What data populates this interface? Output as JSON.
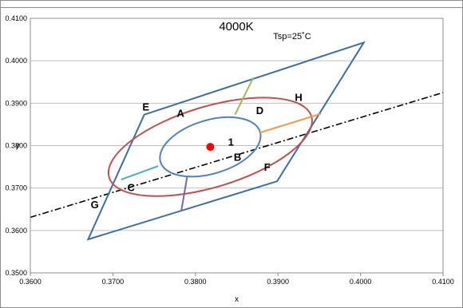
{
  "chart_data": {
    "type": "scatter",
    "title": "4000K",
    "subtitle": "Tsp=25˚C",
    "xlabel": "x",
    "ylabel": "y",
    "xlim": [
      0.36,
      0.41
    ],
    "ylim": [
      0.35,
      0.41
    ],
    "x_ticks": [
      "0.3600",
      "0.3700",
      "0.3800",
      "0.3900",
      "0.4000",
      "0.4100"
    ],
    "y_ticks": [
      "0.3500",
      "0.3600",
      "0.3700",
      "0.3800",
      "0.3900",
      "0.4000",
      "0.4100"
    ],
    "grid": "horizontal",
    "legend": "none",
    "quadrilateral": {
      "color": "#3a6ea5",
      "points": [
        [
          0.3738,
          0.3873
        ],
        [
          0.4004,
          0.4043
        ],
        [
          0.3899,
          0.3716
        ],
        [
          0.367,
          0.3579
        ]
      ]
    },
    "black_body_line": {
      "color": "#000000",
      "style": "dash-dot",
      "points": [
        [
          0.36,
          0.3631
        ],
        [
          0.41,
          0.3925
        ]
      ]
    },
    "ellipses": [
      {
        "name": "outer",
        "color": "#c0504d",
        "center": [
          0.3818,
          0.3797
        ],
        "rx": 0.0128,
        "ry": 0.0095
      },
      {
        "name": "inner",
        "color": "#4f81bd",
        "center": [
          0.3818,
          0.3797
        ],
        "rx": 0.0063,
        "ry": 0.0063
      }
    ],
    "segments": [
      {
        "color": "#9bbb59",
        "points": [
          [
            0.3848,
            0.3873
          ],
          [
            0.387,
            0.396
          ]
        ]
      },
      {
        "color": "#f79646",
        "points": [
          [
            0.3877,
            0.383
          ],
          [
            0.3952,
            0.3875
          ]
        ]
      },
      {
        "color": "#4bacc6",
        "points": [
          [
            0.3755,
            0.3752
          ],
          [
            0.371,
            0.372
          ]
        ]
      },
      {
        "color": "#8064a2",
        "points": [
          [
            0.379,
            0.3727
          ],
          [
            0.3783,
            0.3647
          ]
        ]
      }
    ],
    "point": {
      "label": "1",
      "color": "#ff0000",
      "x": 0.3818,
      "y": 0.3797
    },
    "region_labels": [
      {
        "text": "E",
        "x": 0.374,
        "y": 0.3883
      },
      {
        "text": "A",
        "x": 0.3782,
        "y": 0.3868
      },
      {
        "text": "H",
        "x": 0.3925,
        "y": 0.3905
      },
      {
        "text": "D",
        "x": 0.3878,
        "y": 0.3874
      },
      {
        "text": "1",
        "x": 0.3843,
        "y": 0.38
      },
      {
        "text": "B",
        "x": 0.3851,
        "y": 0.3764
      },
      {
        "text": "F",
        "x": 0.3887,
        "y": 0.3741
      },
      {
        "text": "C",
        "x": 0.3722,
        "y": 0.3693
      },
      {
        "text": "G",
        "x": 0.3678,
        "y": 0.3652
      }
    ]
  }
}
